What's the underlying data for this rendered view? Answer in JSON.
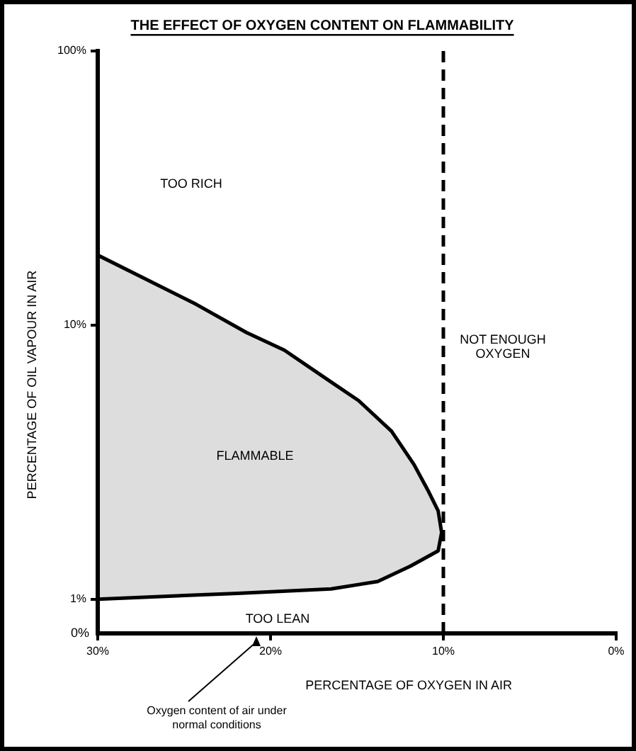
{
  "chart_data": {
    "type": "area",
    "title": "THE EFFECT OF OXYGEN CONTENT ON FLAMMABILITY",
    "xlabel": "PERCENTAGE OF OXYGEN IN AIR",
    "ylabel": "PERCENTAGE OF OIL VAPOUR IN AIR",
    "log": "y",
    "grid": false,
    "legend": false,
    "xlim": [
      30,
      0
    ],
    "xticks": [
      {
        "value": 30,
        "label": "30%"
      },
      {
        "value": 20,
        "label": "20%"
      },
      {
        "value": 10,
        "label": "10%"
      },
      {
        "value": 0,
        "label": "0%"
      }
    ],
    "ylim": [
      0.75,
      100
    ],
    "yticks": [
      {
        "value": 1,
        "label": "1%"
      },
      {
        "value": 10,
        "label": "10%"
      },
      {
        "value": 100,
        "label": "100%"
      }
    ],
    "series": [
      {
        "color": "#000000",
        "x": [
          30,
          24.3,
          21.4,
          19.2,
          16.5,
          14.9,
          13.0,
          11.7,
          10.9,
          10.3,
          10.1,
          10.3,
          11.9,
          13.8,
          16.5,
          21.9,
          30,
          30
        ],
        "values": [
          18,
          11.9,
          9.4,
          8.1,
          6.2,
          5.3,
          4.1,
          3.1,
          2.5,
          2.1,
          1.75,
          1.5,
          1.32,
          1.16,
          1.09,
          1.05,
          1.0,
          18
        ]
      }
    ],
    "ref_lines": [
      {
        "axis": "x",
        "value": 10,
        "line_style": "dashed",
        "color": "#000000"
      }
    ],
    "annotations": [
      "TOO RICH",
      "NOT ENOUGH OXYGEN",
      "FLAMMABLE",
      "TOO LEAN",
      "Oxygen content of air under normal conditions",
      "0%"
    ]
  }
}
